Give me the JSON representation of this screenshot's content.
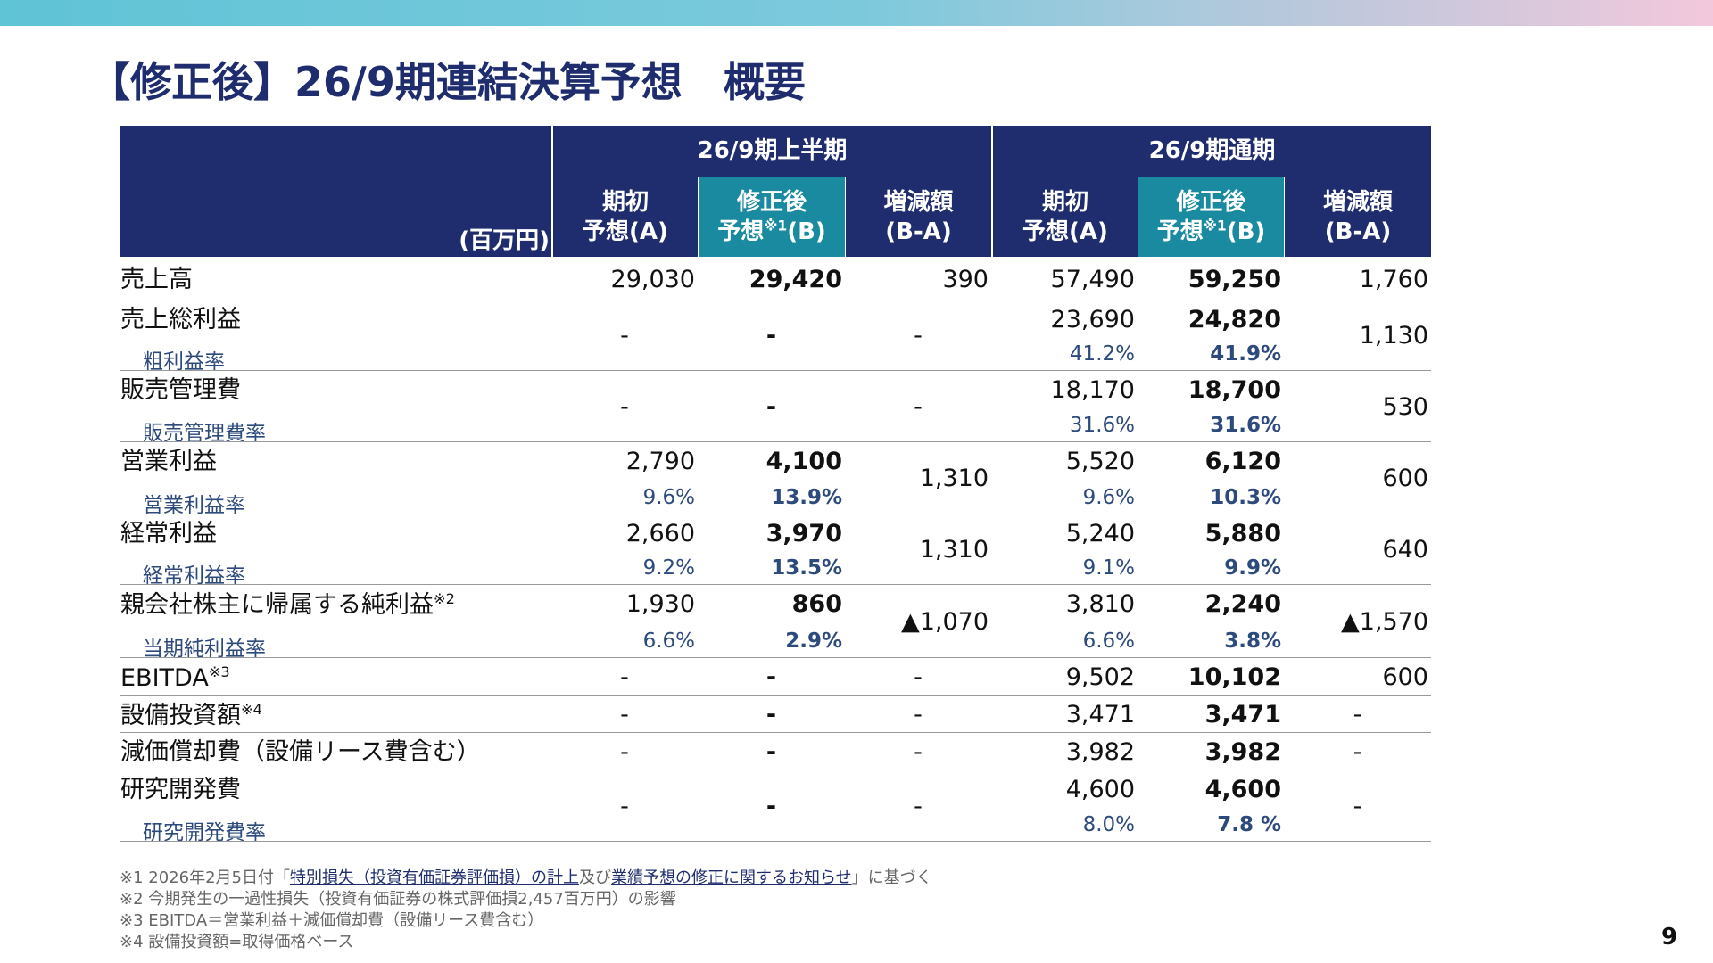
{
  "header": {
    "title": "【修正後】26/9期連結決算予想　概要"
  },
  "table": {
    "unit": "(百万円)",
    "groups": [
      "26/9期上半期",
      "26/9期通期"
    ],
    "columns": [
      {
        "top": "期初",
        "bottom": "予想(A)"
      },
      {
        "top": "修正後",
        "bottom": "予想",
        "note": "※1",
        "suffix": "(B)"
      },
      {
        "top": "増減額",
        "bottom": "(B-A)"
      },
      {
        "top": "期初",
        "bottom": "予想(A)"
      },
      {
        "top": "修正後",
        "bottom": "予想",
        "note": "※1",
        "suffix": "(B)"
      },
      {
        "top": "増減額",
        "bottom": "(B-A)"
      }
    ],
    "rows": [
      {
        "label": "売上高",
        "values": [
          "29,030",
          "29,420",
          "390",
          "57,490",
          "59,250",
          "1,760"
        ]
      },
      {
        "label": "売上総利益",
        "sublabel": "粗利益率",
        "values": [
          "-",
          "-",
          "-",
          "23,690",
          "24,820",
          "1,130"
        ],
        "rates": [
          null,
          null,
          null,
          "41.2%",
          "41.9%",
          null
        ]
      },
      {
        "label": "販売管理費",
        "sublabel": "販売管理費率",
        "values": [
          "-",
          "-",
          "-",
          "18,170",
          "18,700",
          "530"
        ],
        "rates": [
          null,
          null,
          null,
          "31.6%",
          "31.6%",
          null
        ]
      },
      {
        "label": "営業利益",
        "sublabel": "営業利益率",
        "values": [
          "2,790",
          "4,100",
          "1,310",
          "5,520",
          "6,120",
          "600"
        ],
        "rates": [
          "9.6%",
          "13.9%",
          null,
          "9.6%",
          "10.3%",
          null
        ]
      },
      {
        "label": "経常利益",
        "sublabel": "経常利益率",
        "values": [
          "2,660",
          "3,970",
          "1,310",
          "5,240",
          "5,880",
          "640"
        ],
        "rates": [
          "9.2%",
          "13.5%",
          null,
          "9.1%",
          "9.9%",
          null
        ]
      },
      {
        "label": "親会社株主に帰属する純利益",
        "note": "※2",
        "sublabel": "当期純利益率",
        "values": [
          "1,930",
          "860",
          "▲1,070",
          "3,810",
          "2,240",
          "▲1,570"
        ],
        "rates": [
          "6.6%",
          "2.9%",
          null,
          "6.6%",
          "3.8%",
          null
        ]
      },
      {
        "label": "EBITDA",
        "note": "※3",
        "values": [
          "-",
          "-",
          "-",
          "9,502",
          "10,102",
          "600"
        ]
      },
      {
        "label": "設備投資額",
        "note": "※4",
        "values": [
          "-",
          "-",
          "-",
          "3,471",
          "3,471",
          "-"
        ]
      },
      {
        "label": "減価償却費（設備リース費含む）",
        "values": [
          "-",
          "-",
          "-",
          "3,982",
          "3,982",
          "-"
        ]
      },
      {
        "label": "研究開発費",
        "sublabel": "研究開発費率",
        "values": [
          "-",
          "-",
          "-",
          "4,600",
          "4,600",
          "-"
        ],
        "rates": [
          null,
          null,
          null,
          "8.0%",
          "7.8 %",
          null
        ]
      }
    ]
  },
  "footnotes": [
    [
      "※1 2026年2月5日付「",
      "特別損失（投資有価証券評価損）の計上",
      "及び",
      "業績予想の修正に関するお知らせ",
      "」に基づく"
    ],
    "※2 今期発生の一過性損失（投資有価証券の株式評価損2,457百万円）の影響",
    "※3 EBITDA＝営業利益＋減価償却費（設備リース費含む）",
    "※4 設備投資額=取得価格ベース"
  ],
  "page_number": "9"
}
